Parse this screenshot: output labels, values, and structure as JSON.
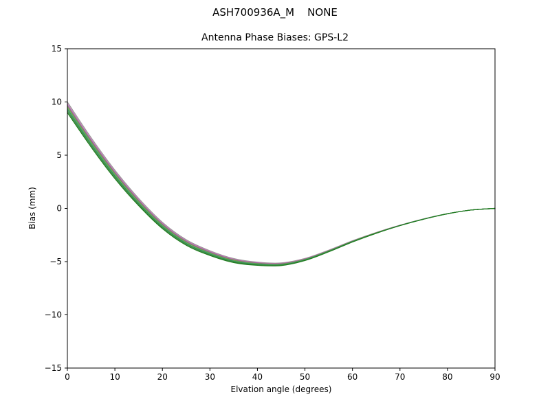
{
  "chart_data": {
    "type": "line",
    "title": "ASH700936A_M    NONE",
    "subtitle": "Antenna Phase Biases: GPS-L2",
    "xlabel": "Elvation angle (degrees)",
    "ylabel": "Bias (mm)",
    "xlim": [
      0,
      90
    ],
    "ylim": [
      -15,
      15
    ],
    "xticks": [
      0,
      10,
      20,
      30,
      40,
      50,
      60,
      70,
      80,
      90
    ],
    "xticklabels": [
      "0",
      "10",
      "20",
      "30",
      "40",
      "50",
      "60",
      "70",
      "80",
      "90"
    ],
    "yticks": [
      -15,
      -10,
      -5,
      0,
      5,
      10,
      15
    ],
    "yticklabels": [
      "−15",
      "−10",
      "−5",
      "0",
      "5",
      "10",
      "15"
    ],
    "grid": false,
    "legend": "none",
    "axis_color": "#000000",
    "x": [
      0,
      5,
      10,
      15,
      20,
      25,
      30,
      35,
      40,
      45,
      50,
      55,
      60,
      65,
      70,
      75,
      80,
      85,
      90
    ],
    "series": [
      {
        "name": "curve-1",
        "color": "#999999",
        "values": [
          10.0,
          6.65,
          3.6,
          0.95,
          -1.3,
          -2.94,
          -3.98,
          -4.71,
          -5.05,
          -5.12,
          -4.7,
          -3.92,
          -3.04,
          -2.26,
          -1.58,
          -0.99,
          -0.49,
          -0.15,
          0.0
        ]
      },
      {
        "name": "curve-2",
        "color": "#c47ab0",
        "values": [
          9.85,
          6.51,
          3.48,
          0.84,
          -1.39,
          -3.02,
          -4.04,
          -4.77,
          -5.09,
          -5.16,
          -4.73,
          -3.95,
          -3.06,
          -2.27,
          -1.58,
          -0.99,
          -0.5,
          -0.15,
          0.0
        ]
      },
      {
        "name": "curve-3",
        "color": "#8e5ea2",
        "values": [
          9.7,
          6.38,
          3.36,
          0.74,
          -1.48,
          -3.1,
          -4.11,
          -4.83,
          -5.14,
          -5.2,
          -4.76,
          -3.97,
          -3.08,
          -2.28,
          -1.59,
          -0.99,
          -0.5,
          -0.15,
          0.0
        ]
      },
      {
        "name": "curve-4",
        "color": "#7a9e3f",
        "values": [
          9.57,
          6.26,
          3.26,
          0.65,
          -1.56,
          -3.16,
          -4.17,
          -4.87,
          -5.18,
          -5.23,
          -4.79,
          -3.99,
          -3.09,
          -2.29,
          -1.6,
          -1.0,
          -0.5,
          -0.15,
          0.0
        ]
      },
      {
        "name": "curve-5",
        "color": "#55a868",
        "values": [
          9.43,
          6.14,
          3.14,
          0.55,
          -1.64,
          -3.24,
          -4.23,
          -4.93,
          -5.22,
          -5.27,
          -4.81,
          -4.01,
          -3.11,
          -2.31,
          -1.6,
          -1.0,
          -0.5,
          -0.15,
          0.0
        ]
      },
      {
        "name": "curve-6",
        "color": "#2e8b57",
        "values": [
          9.3,
          6.02,
          3.04,
          0.46,
          -1.72,
          -3.3,
          -4.29,
          -4.97,
          -5.26,
          -5.3,
          -4.84,
          -4.03,
          -3.12,
          -2.32,
          -1.61,
          -1.01,
          -0.5,
          -0.15,
          0.0
        ]
      },
      {
        "name": "curve-7",
        "color": "#3c8c3c",
        "values": [
          9.15,
          5.89,
          2.92,
          0.36,
          -1.81,
          -3.38,
          -4.36,
          -5.03,
          -5.31,
          -5.34,
          -4.87,
          -4.05,
          -3.14,
          -2.33,
          -1.62,
          -1.01,
          -0.5,
          -0.15,
          0.0
        ]
      },
      {
        "name": "curve-8",
        "color": "#1e7a1e",
        "values": [
          9.0,
          5.76,
          2.8,
          0.26,
          -1.9,
          -3.46,
          -4.42,
          -5.09,
          -5.35,
          -5.37,
          -4.9,
          -4.08,
          -3.16,
          -2.34,
          -1.62,
          -1.01,
          -0.51,
          -0.15,
          0.0
        ]
      }
    ]
  }
}
